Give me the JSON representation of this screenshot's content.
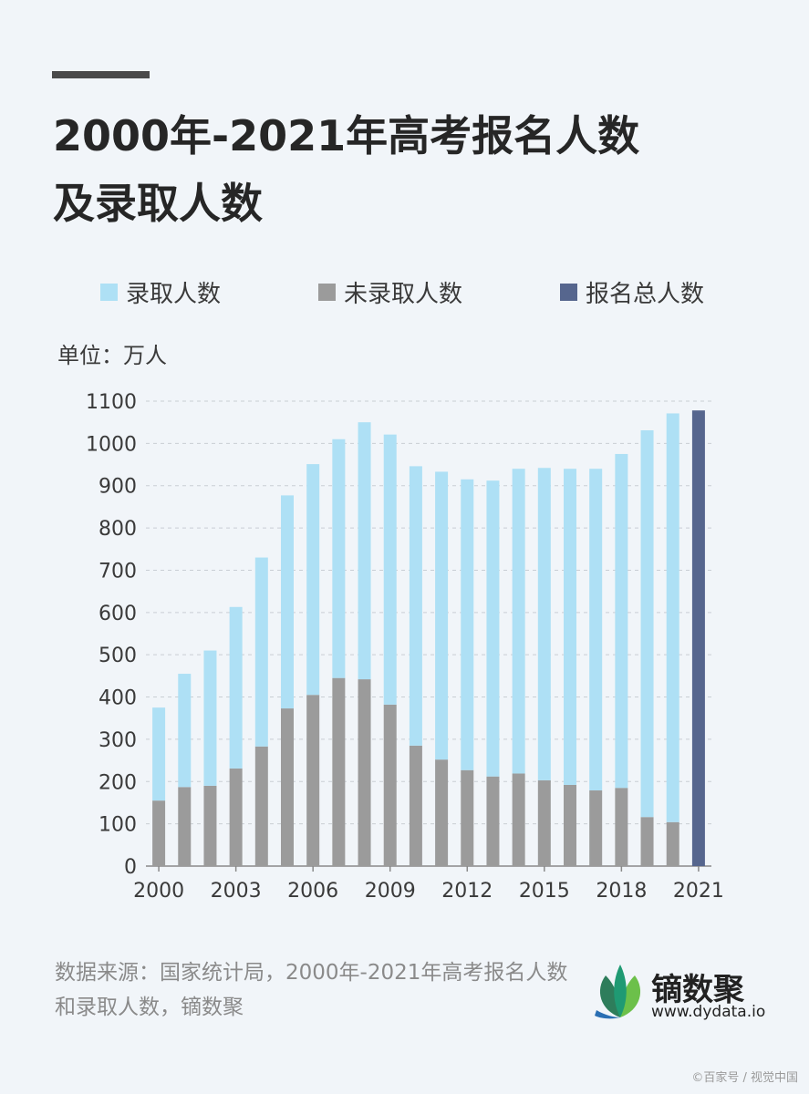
{
  "title_line1": "2000年-2021年高考报名人数",
  "title_line2": "及录取人数",
  "legend": [
    {
      "label": "录取人数",
      "color": "#aee0f5"
    },
    {
      "label": "未录取人数",
      "color": "#9b9b9b"
    },
    {
      "label": "报名总人数",
      "color": "#56668e"
    }
  ],
  "unit_label": "单位：万人",
  "source_text": "数据来源：国家统计局，2000年-2021年高考报名人数和录取人数，镝数聚",
  "logo": {
    "name": "镝数聚",
    "url": "www.dydata.io"
  },
  "watermark": "©百家号 / 视觉中国",
  "chart_data": {
    "type": "bar",
    "stacked": true,
    "ylim": [
      0,
      1100
    ],
    "yticks": [
      0,
      100,
      200,
      300,
      400,
      500,
      600,
      700,
      800,
      900,
      1000,
      1100
    ],
    "categories": [
      "2000",
      "2001",
      "2002",
      "2003",
      "2004",
      "2005",
      "2006",
      "2007",
      "2008",
      "2009",
      "2010",
      "2011",
      "2012",
      "2013",
      "2014",
      "2015",
      "2016",
      "2017",
      "2018",
      "2019",
      "2020",
      "2021"
    ],
    "xtick_labels": [
      "2000",
      "2003",
      "2006",
      "2009",
      "2012",
      "2015",
      "2018",
      "2021"
    ],
    "grid": true,
    "series": [
      {
        "name": "未录取人数",
        "color": "#9b9b9b",
        "values": [
          155,
          187,
          190,
          231,
          283,
          373,
          405,
          445,
          442,
          382,
          285,
          252,
          227,
          212,
          219,
          203,
          192,
          179,
          185,
          116,
          104,
          null
        ]
      },
      {
        "name": "录取人数",
        "color": "#aee0f5",
        "values": [
          220,
          268,
          320,
          382,
          447,
          504,
          546,
          565,
          608,
          639,
          661,
          681,
          688,
          700,
          721,
          739,
          748,
          761,
          790,
          915,
          967,
          null
        ]
      },
      {
        "name": "报名总人数",
        "color": "#56668e",
        "values": [
          null,
          null,
          null,
          null,
          null,
          null,
          null,
          null,
          null,
          null,
          null,
          null,
          null,
          null,
          null,
          null,
          null,
          null,
          null,
          null,
          null,
          1078
        ]
      }
    ]
  }
}
